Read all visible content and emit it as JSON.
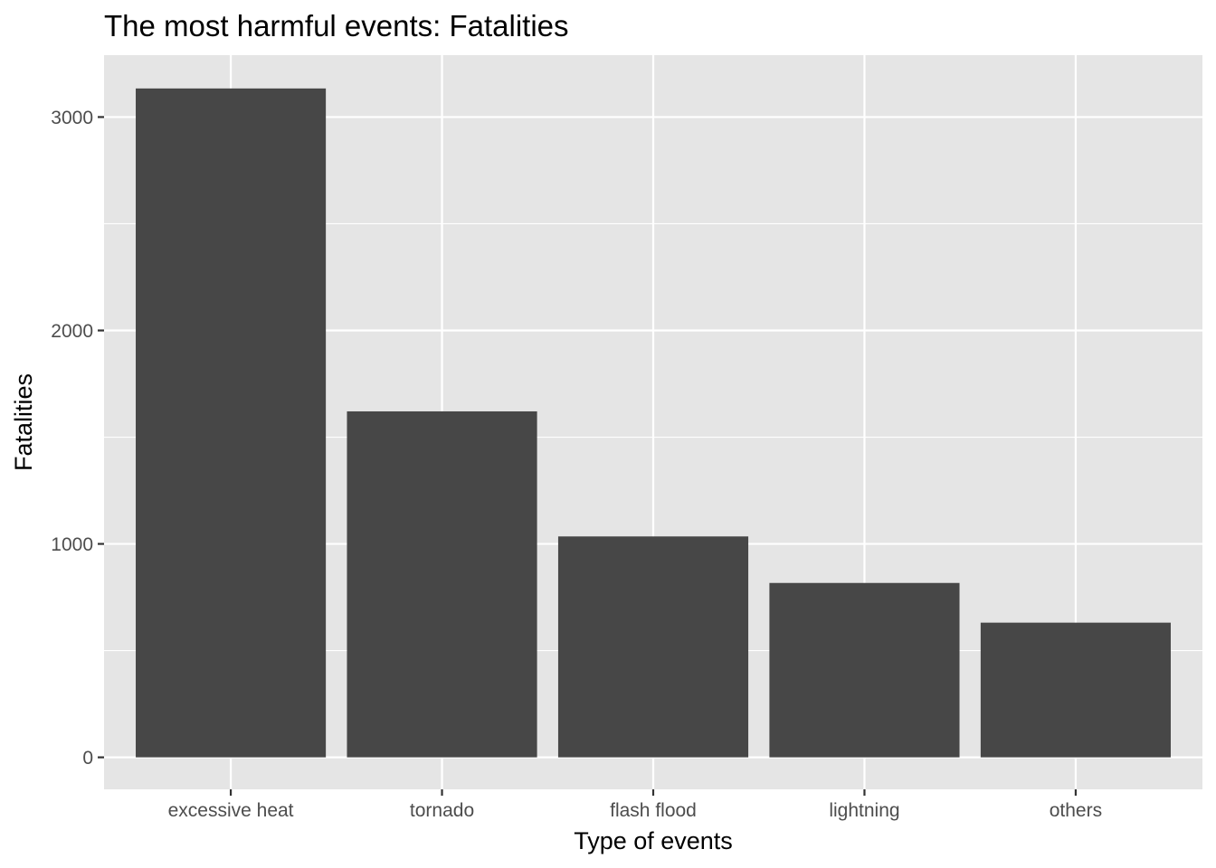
{
  "chart_data": {
    "type": "bar",
    "title": "The most harmful events: Fatalities",
    "xlabel": "Type of events",
    "ylabel": "Fatalities",
    "categories": [
      "excessive heat",
      "tornado",
      "flash flood",
      "lightning",
      "others"
    ],
    "values": [
      3134,
      1621,
      1035,
      817,
      631
    ],
    "yticks": [
      0,
      1000,
      2000,
      3000
    ],
    "ytick_labels": [
      "0",
      "1000",
      "2000",
      "3000"
    ],
    "ylim": [
      -150,
      3290
    ],
    "grid": true,
    "legend": "none",
    "colors": {
      "bar": "#474747",
      "panel_background": "#e5e5e5",
      "grid": "#ffffff",
      "tick": "#333333"
    }
  }
}
